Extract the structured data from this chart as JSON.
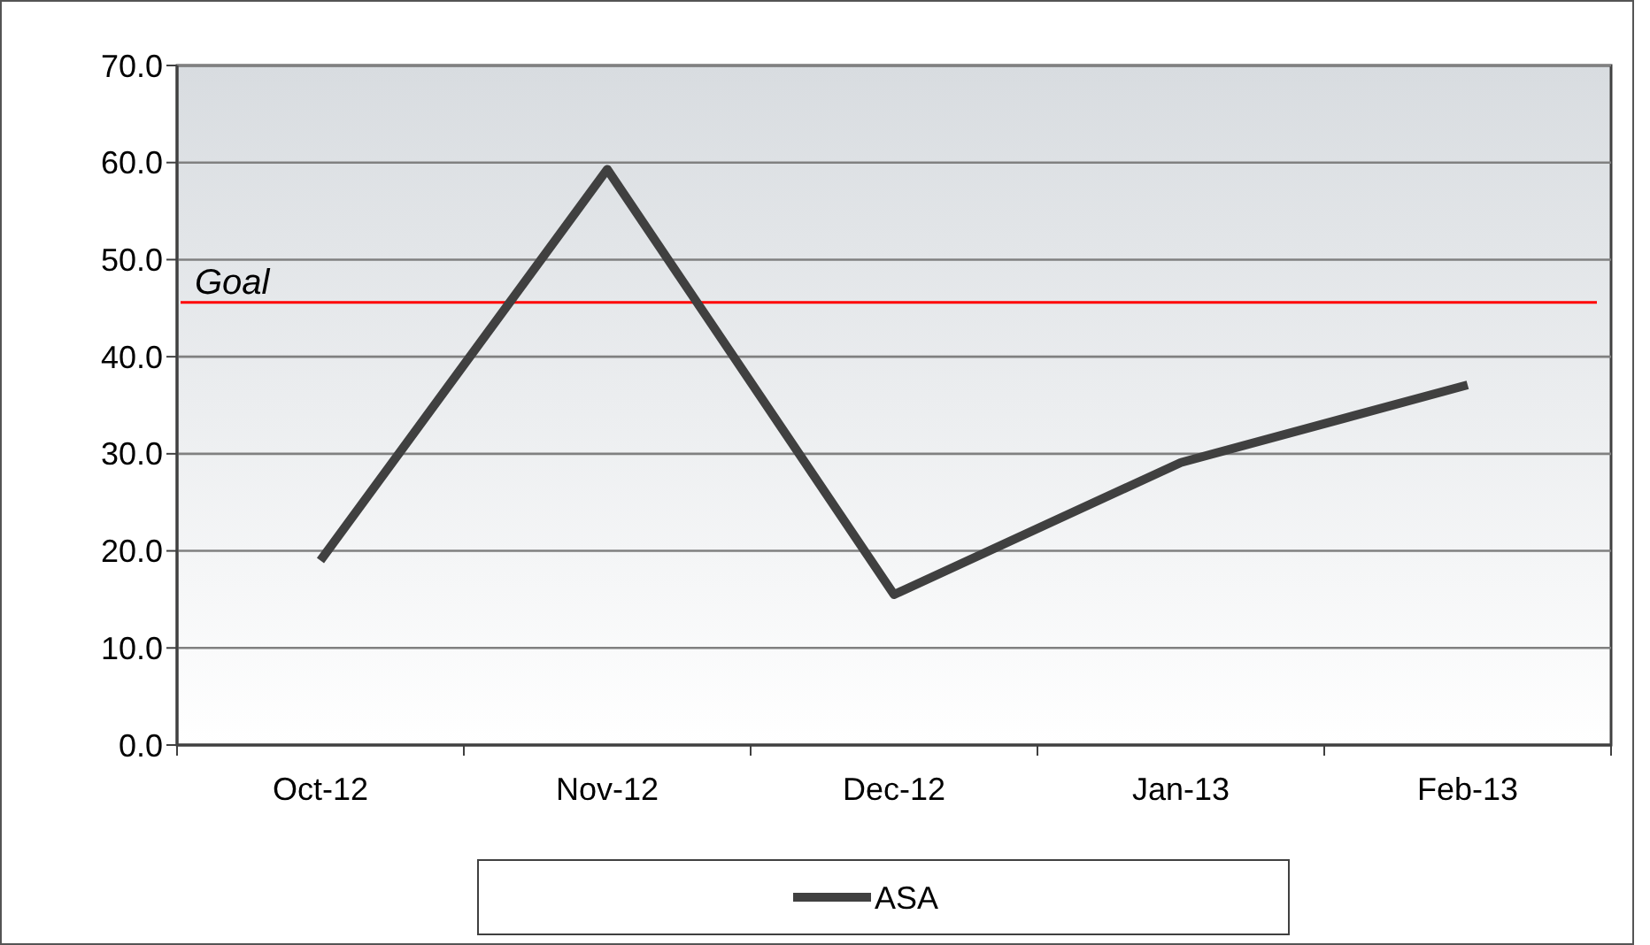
{
  "chart_data": {
    "type": "line",
    "categories": [
      "Oct-12",
      "Nov-12",
      "Dec-12",
      "Jan-13",
      "Feb-13"
    ],
    "series": [
      {
        "name": "ASA",
        "color": "#404040",
        "values": [
          19.0,
          59.3,
          15.5,
          29.1,
          37.1
        ]
      }
    ],
    "ylim": [
      0,
      70
    ],
    "yticks": [
      {
        "value": 0,
        "label": "0.0"
      },
      {
        "value": 10,
        "label": "10.0"
      },
      {
        "value": 20,
        "label": "20.0"
      },
      {
        "value": 30,
        "label": "30.0"
      },
      {
        "value": 40,
        "label": "40.0"
      },
      {
        "value": 50,
        "label": "50.0"
      },
      {
        "value": 60,
        "label": "60.0"
      },
      {
        "value": 70,
        "label": "70.0"
      }
    ],
    "ref_lines": [
      {
        "axis": "y",
        "value": 45.6,
        "label": "Goal",
        "color": "#ff0000"
      }
    ],
    "grid": "y",
    "legend": "bottom",
    "marker": "none",
    "line_style": "solid"
  }
}
